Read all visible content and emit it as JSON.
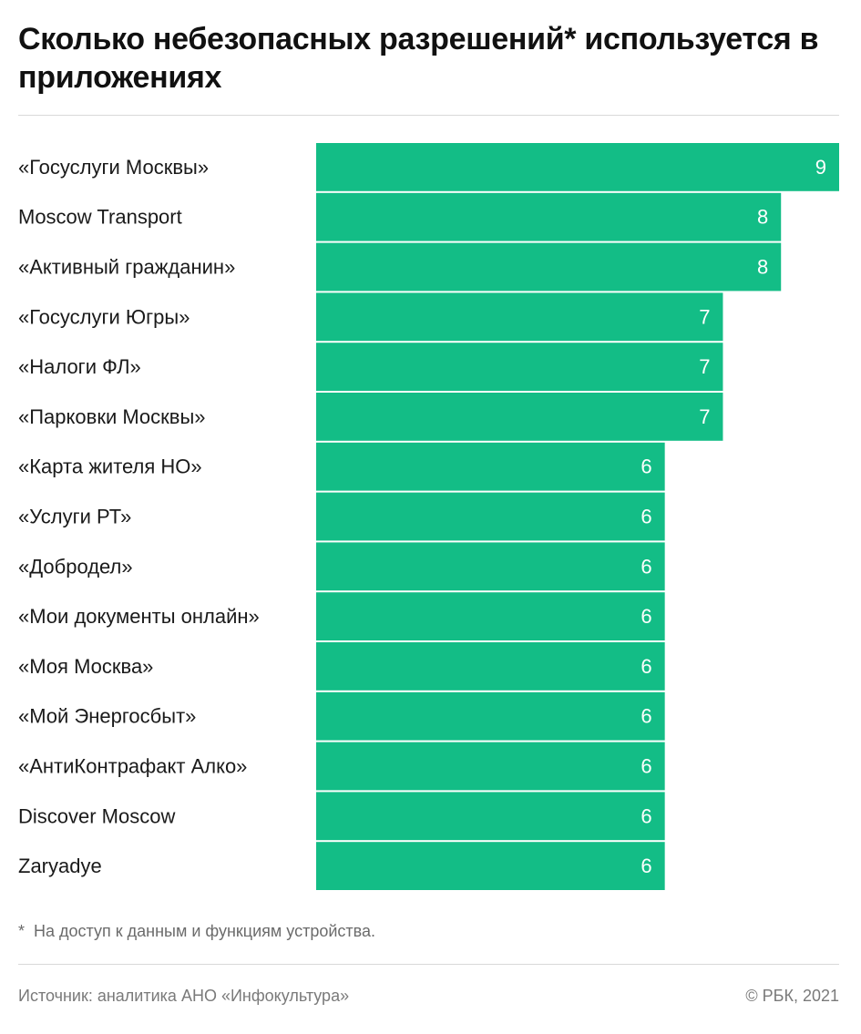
{
  "chart_data": {
    "type": "bar",
    "orientation": "horizontal",
    "title": "Сколько небезопасных разрешений* используется в приложениях",
    "categories": [
      "«Госуслуги Москвы»",
      "Moscow Transport",
      "«Активный гражданин»",
      "«Госуслуги Югры»",
      "«Налоги ФЛ»",
      "«Парковки Москвы»",
      "«Карта жителя НО»",
      "«Услуги РТ»",
      "«Добродел»",
      "«Мои документы онлайн»",
      "«Моя Москва»",
      "«Мой Энергосбыт»",
      "«АнтиКонтрафакт Алко»",
      "Discover Moscow",
      "Zaryadye"
    ],
    "values": [
      9,
      8,
      8,
      7,
      7,
      7,
      6,
      6,
      6,
      6,
      6,
      6,
      6,
      6,
      6
    ],
    "bar_color": "#13bd86",
    "grid": false,
    "legend": "none"
  },
  "footnote": {
    "star": "*",
    "text": "На доступ к данным и функциям устройства."
  },
  "source": "Источник: аналитика АНО «Инфокультура»",
  "copyright": "© РБК, 2021"
}
